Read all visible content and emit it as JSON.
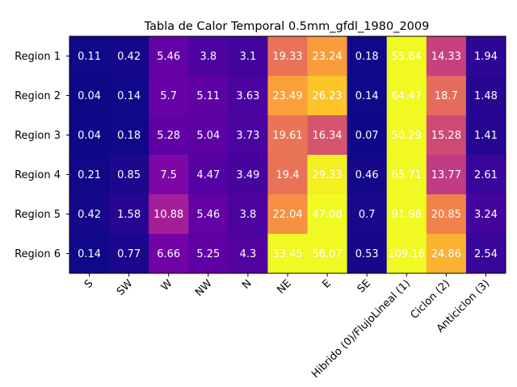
{
  "chart_data": {
    "type": "heatmap",
    "title": "Tabla de Calor Temporal 0.5mm_gfdl_1980_2009",
    "xlabel": "",
    "ylabel": "",
    "colormap": "plasma",
    "color_range": [
      0,
      30
    ],
    "x_categories": [
      "S",
      "SW",
      "W",
      "NW",
      "N",
      "NE",
      "E",
      "SE",
      "Hibrido (0)/FlujoLineal (1)",
      "Ciclon (2)",
      "Anticiclon (3)"
    ],
    "y_categories": [
      "Region 1",
      "Region 2",
      "Region 3",
      "Region 4",
      "Region 5",
      "Region 6"
    ],
    "values": [
      [
        0.11,
        0.42,
        5.46,
        3.8,
        3.1,
        19.33,
        23.24,
        0.18,
        55.64,
        14.33,
        1.94
      ],
      [
        0.04,
        0.14,
        5.7,
        5.11,
        3.63,
        23.49,
        26.23,
        0.14,
        64.47,
        18.7,
        1.48
      ],
      [
        0.04,
        0.18,
        5.28,
        5.04,
        3.73,
        19.61,
        16.34,
        0.07,
        50.29,
        15.28,
        1.41
      ],
      [
        0.21,
        0.85,
        7.5,
        4.47,
        3.49,
        19.4,
        29.33,
        0.46,
        65.71,
        13.77,
        2.61
      ],
      [
        0.42,
        1.58,
        10.88,
        5.46,
        3.8,
        22.04,
        47.08,
        0.7,
        91.98,
        20.85,
        3.24
      ],
      [
        0.14,
        0.77,
        6.66,
        5.25,
        4.3,
        33.45,
        58.07,
        0.53,
        109.16,
        24.86,
        2.54
      ]
    ],
    "cell_text_color": "#ffffff",
    "x_tick_rotation_deg": 45
  }
}
